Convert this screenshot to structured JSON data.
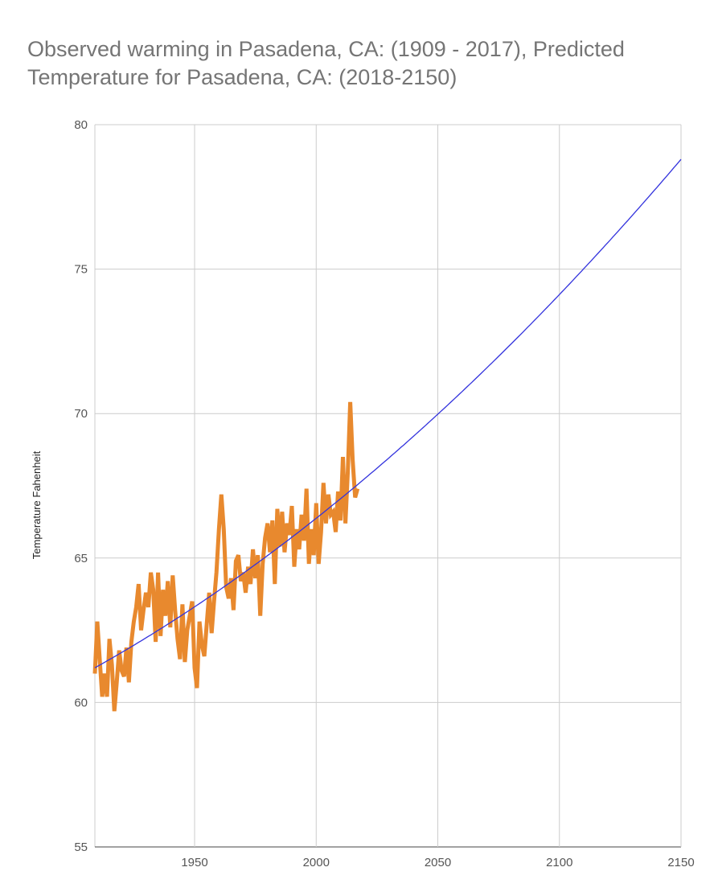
{
  "title_line1": "Observed warming in Pasadena, CA: (1909 - 2017), Predicted",
  "title_line2": "Temperature for Pasadena, CA: (2018-2150)",
  "chart_data": {
    "type": "line",
    "ylabel": "Temperature Fahenheit",
    "xlim": [
      1909,
      2150
    ],
    "ylim": [
      55,
      80
    ],
    "x_ticks": [
      1950,
      2000,
      2050,
      2100,
      2150
    ],
    "y_ticks": [
      55,
      60,
      65,
      70,
      75,
      80
    ],
    "grid": true,
    "series": [
      {
        "color": "#e8892e",
        "x": [
          1909,
          1910,
          1911,
          1912,
          1913,
          1914,
          1915,
          1916,
          1917,
          1918,
          1919,
          1920,
          1921,
          1922,
          1923,
          1924,
          1925,
          1926,
          1927,
          1928,
          1929,
          1930,
          1931,
          1932,
          1933,
          1934,
          1935,
          1936,
          1937,
          1938,
          1939,
          1940,
          1941,
          1942,
          1943,
          1944,
          1945,
          1946,
          1947,
          1948,
          1949,
          1950,
          1951,
          1952,
          1953,
          1954,
          1955,
          1956,
          1957,
          1958,
          1959,
          1960,
          1961,
          1962,
          1963,
          1964,
          1965,
          1966,
          1967,
          1968,
          1969,
          1970,
          1971,
          1972,
          1973,
          1974,
          1975,
          1976,
          1977,
          1978,
          1979,
          1980,
          1981,
          1982,
          1983,
          1984,
          1985,
          1986,
          1987,
          1988,
          1989,
          1990,
          1991,
          1992,
          1993,
          1994,
          1995,
          1996,
          1997,
          1998,
          1999,
          2000,
          2001,
          2002,
          2003,
          2004,
          2005,
          2006,
          2007,
          2008,
          2009,
          2010,
          2011,
          2012,
          2013,
          2014,
          2015,
          2016,
          2017
        ],
        "values": [
          61.0,
          62.8,
          61.5,
          60.2,
          61.0,
          60.2,
          62.2,
          61.3,
          59.7,
          60.7,
          61.8,
          61.1,
          60.9,
          61.9,
          60.7,
          62.1,
          62.8,
          63.3,
          64.1,
          62.5,
          63.2,
          63.8,
          63.3,
          64.5,
          63.9,
          62.1,
          64.5,
          62.3,
          63.9,
          63.0,
          64.2,
          62.6,
          64.4,
          63.2,
          62.2,
          61.5,
          63.4,
          61.4,
          62.5,
          63.0,
          63.5,
          61.2,
          60.5,
          62.8,
          62.0,
          61.6,
          62.7,
          63.8,
          62.4,
          63.5,
          64.5,
          66.0,
          67.2,
          66.0,
          64.0,
          63.6,
          64.3,
          63.2,
          64.9,
          65.1,
          64.2,
          64.5,
          63.8,
          64.7,
          64.1,
          65.3,
          64.3,
          65.1,
          63.0,
          64.8,
          65.7,
          66.2,
          65.2,
          66.3,
          64.1,
          66.7,
          65.4,
          66.6,
          65.2,
          66.2,
          65.8,
          66.8,
          64.7,
          66.0,
          65.3,
          66.5,
          65.6,
          67.4,
          64.8,
          66.0,
          65.1,
          66.9,
          64.8,
          65.9,
          67.6,
          66.2,
          67.2,
          66.5,
          66.6,
          65.9,
          67.3,
          66.3,
          68.5,
          66.2,
          68.0,
          70.4,
          68.4,
          67.1,
          67.4
        ]
      },
      {
        "color": "#3333dd",
        "model": "quadratic",
        "points": [
          [
            1909,
            61.2
          ],
          [
            2015,
            67.4
          ],
          [
            2150,
            78.8
          ]
        ]
      }
    ]
  }
}
